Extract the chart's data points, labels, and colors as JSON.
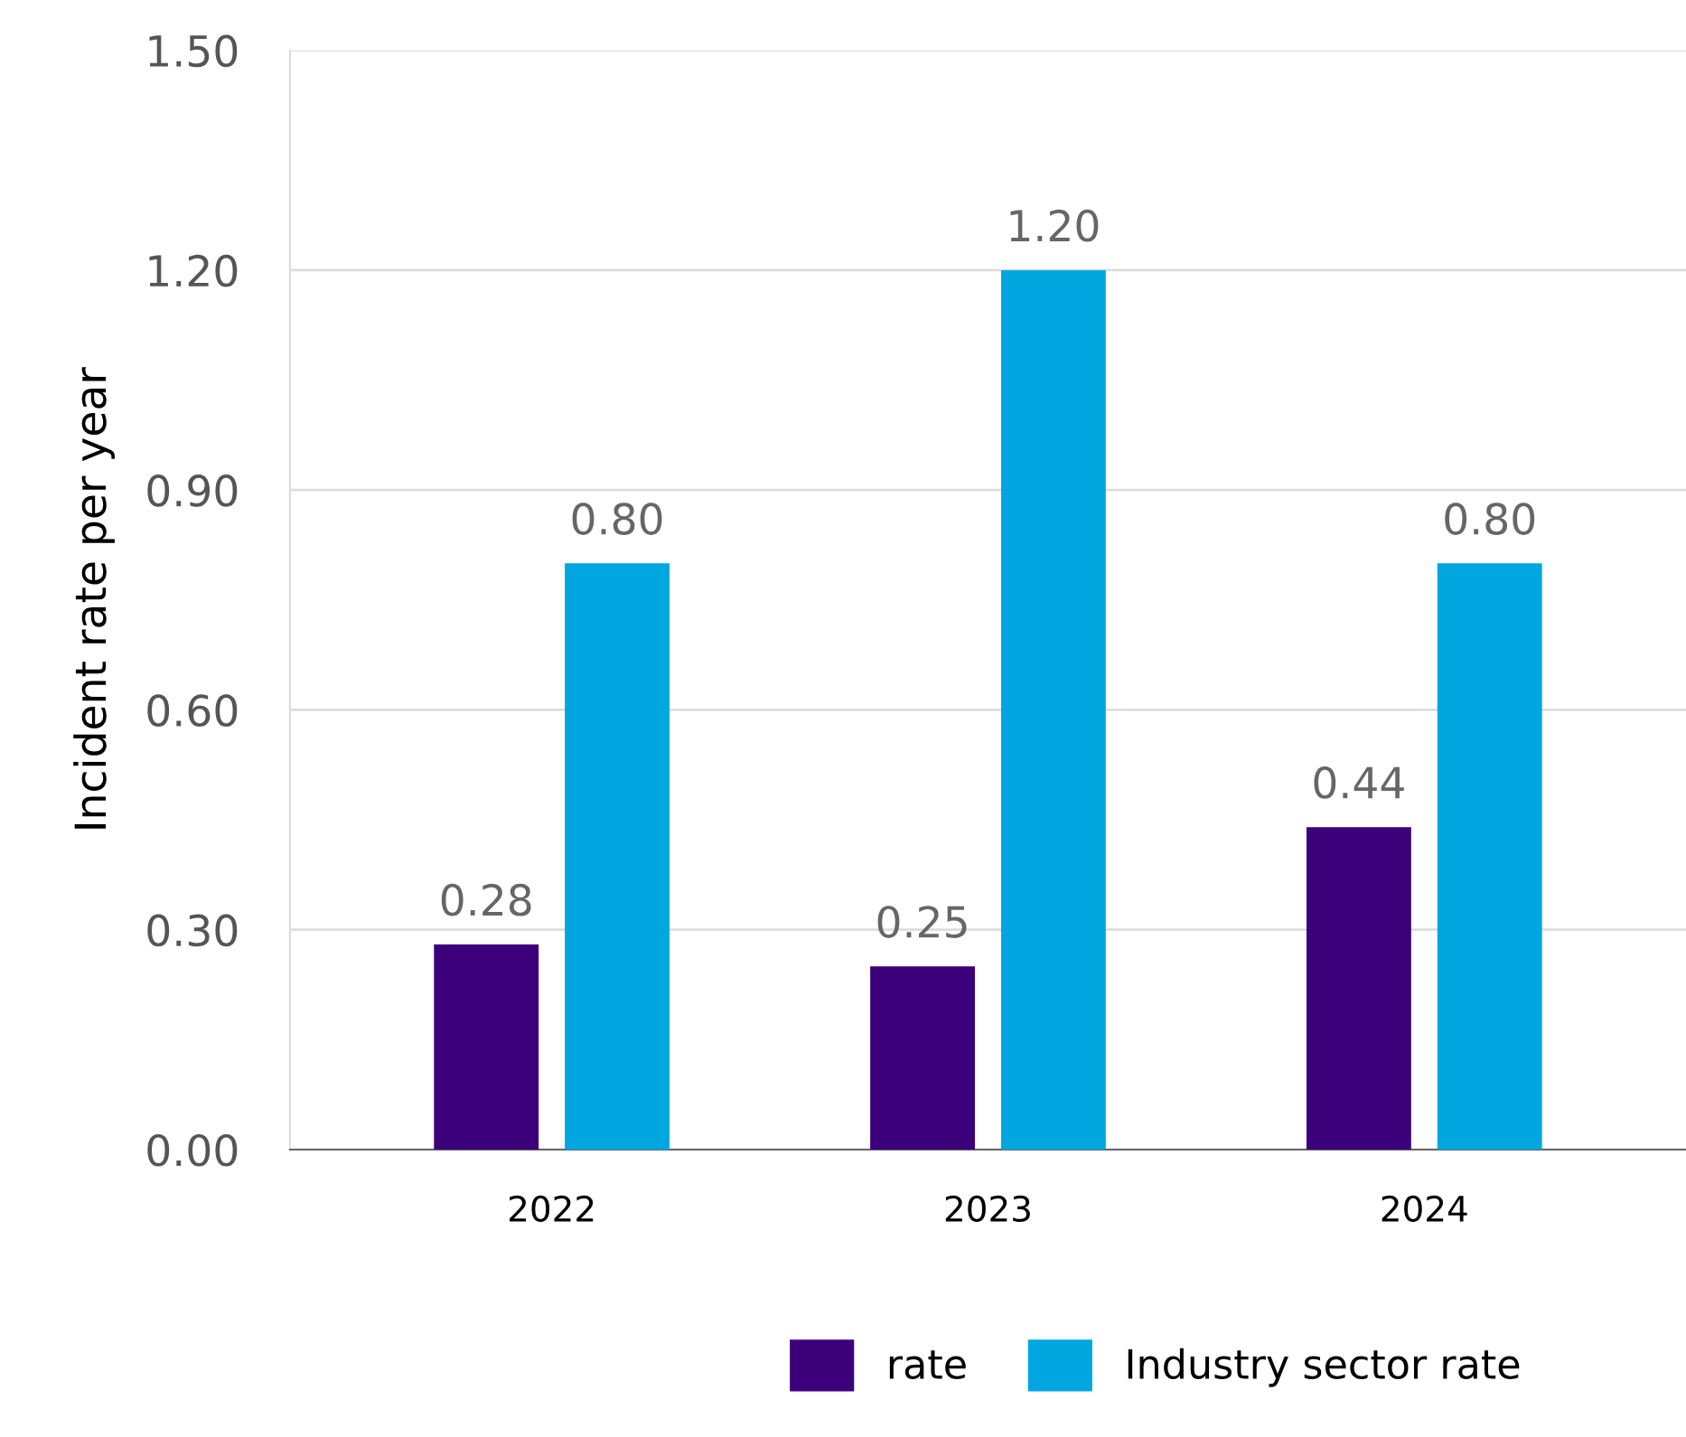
{
  "chart_data": {
    "type": "bar",
    "ylabel": "Incident rate per year",
    "categories": [
      "2022",
      "2023",
      "2024"
    ],
    "series": [
      {
        "name": "rate",
        "color": "#3d007b",
        "values": [
          0.28,
          0.25,
          0.44
        ],
        "value_labels": [
          "0.28",
          "0.25",
          "0.44"
        ]
      },
      {
        "name": "Industry sector rate",
        "color": "#00a6e0",
        "values": [
          0.8,
          1.2,
          0.8
        ],
        "value_labels": [
          "0.80",
          "1.20",
          "0.80"
        ]
      }
    ],
    "ylim": [
      0,
      1.5
    ],
    "yticks": [
      {
        "value": 0,
        "label": "0.00"
      },
      {
        "value": 0.3,
        "label": "0.30"
      },
      {
        "value": 0.6,
        "label": "0.60"
      },
      {
        "value": 0.9,
        "label": "0.90"
      },
      {
        "value": 1.2,
        "label": "1.20"
      },
      {
        "value": 1.5,
        "label": "1.50"
      }
    ],
    "grid": "y",
    "legend": "bottom"
  }
}
